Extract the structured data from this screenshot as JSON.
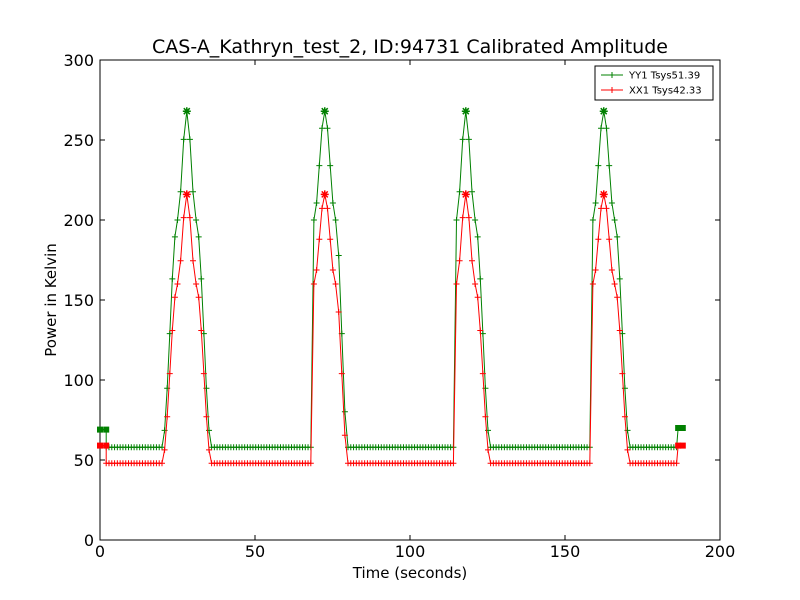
{
  "chart_data": {
    "type": "line",
    "title": "CAS-A_Kathryn_test_2, ID:94731 Calibrated Amplitude",
    "xlabel": "Time (seconds)",
    "ylabel": "Power in Kelvin",
    "xlim": [
      0,
      200
    ],
    "ylim": [
      0,
      300
    ],
    "xticks": [
      "0",
      "50",
      "100",
      "150",
      "200"
    ],
    "yticks": [
      "0",
      "50",
      "100",
      "150",
      "200",
      "250",
      "300"
    ],
    "grid": false,
    "legend_position": "top-right",
    "series": [
      {
        "name": "YY1 Tsys51.39",
        "color": "#008000",
        "marker": "+",
        "calibration_points": [
          [
            0,
            69
          ],
          [
            2,
            69
          ],
          [
            186.5,
            70
          ],
          [
            188,
            70
          ]
        ],
        "segments": [
          [
            2,
            58
          ],
          [
            20,
            58
          ],
          [
            25,
            200
          ],
          [
            28,
            268
          ],
          [
            31,
            200
          ],
          [
            36,
            58
          ],
          [
            68,
            58
          ],
          [
            69,
            200
          ],
          [
            72.5,
            268
          ],
          [
            76,
            200
          ],
          [
            80,
            58
          ],
          [
            114,
            58
          ],
          [
            115,
            200
          ],
          [
            118,
            268
          ],
          [
            121,
            200
          ],
          [
            126,
            58
          ],
          [
            158,
            58
          ],
          [
            159,
            200
          ],
          [
            162.5,
            268
          ],
          [
            166,
            200
          ],
          [
            171,
            58
          ],
          [
            186,
            58
          ]
        ]
      },
      {
        "name": "XX1 Tsys42.33",
        "color": "#ff0000",
        "marker": "+",
        "calibration_points": [
          [
            0,
            59
          ],
          [
            2,
            59
          ],
          [
            186.5,
            59
          ],
          [
            188,
            59
          ]
        ],
        "segments": [
          [
            2,
            48
          ],
          [
            20,
            48
          ],
          [
            25,
            160
          ],
          [
            28,
            216
          ],
          [
            31,
            160
          ],
          [
            36,
            48
          ],
          [
            68,
            48
          ],
          [
            69,
            160
          ],
          [
            72.5,
            216
          ],
          [
            76,
            160
          ],
          [
            80,
            48
          ],
          [
            114,
            48
          ],
          [
            115,
            160
          ],
          [
            118,
            216
          ],
          [
            121,
            160
          ],
          [
            126,
            48
          ],
          [
            158,
            48
          ],
          [
            159,
            160
          ],
          [
            162.5,
            216
          ],
          [
            166,
            160
          ],
          [
            171,
            48
          ],
          [
            186,
            48
          ]
        ]
      }
    ]
  }
}
